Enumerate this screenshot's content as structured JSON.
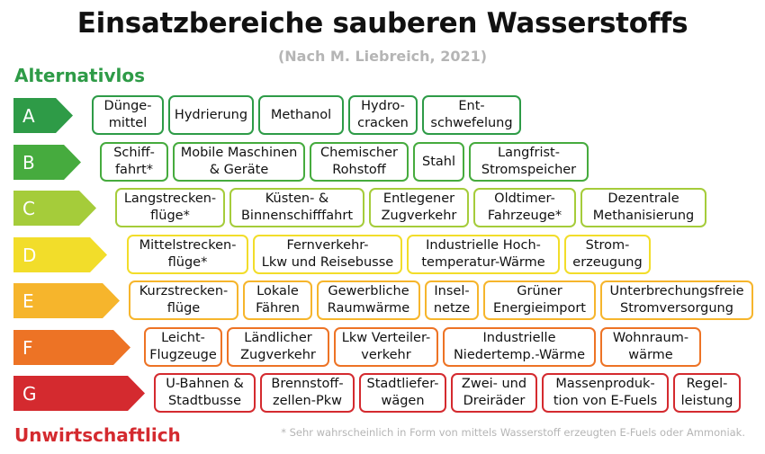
{
  "title": "Einsatzbereiche sauberen Wasserstoffs",
  "subtitle": "(Nach M. Liebreich, 2021)",
  "top_label": "Alternativlos",
  "bottom_label": "Unwirtschaftlich",
  "footnote": "* Sehr wahrscheinlich in Form von mittels Wasserstoff erzeugten E-Fuels oder Ammoniak.",
  "colors": {
    "top_label": "#2e9b47",
    "bottom_label": "#d42a2f"
  },
  "rows": [
    {
      "letter": "A",
      "color": "#2e9b47",
      "items": [
        "Dünge-\nmittel",
        "Hydrierung",
        "Methanol",
        "Hydro-\ncracken",
        "Ent-\nschwefelung"
      ]
    },
    {
      "letter": "B",
      "color": "#46ab3e",
      "items": [
        "Schiff-\nfahrt*",
        "Mobile Maschinen\n& Geräte",
        "Chemischer\nRohstoff",
        "Stahl",
        "Langfrist-\nStromspeicher"
      ]
    },
    {
      "letter": "C",
      "color": "#a5cc3a",
      "items": [
        "Langstrecken-\nflüge*",
        "Küsten- &\nBinnenschifffahrt",
        "Entlegener\nZugverkehr",
        "Oldtimer-\nFahrzeuge*",
        "Dezentrale\nMethanisierung"
      ]
    },
    {
      "letter": "D",
      "color": "#f2dd2a",
      "items": [
        "Mittelstrecken-\nflüge*",
        "Fernverkehr-\nLkw und Reisebusse",
        "Industrielle Hoch-\ntemperatur-Wärme",
        "Strom-\nerzeugung"
      ]
    },
    {
      "letter": "E",
      "color": "#f6b52c",
      "items": [
        "Kurzstrecken-\nflüge",
        "Lokale\nFähren",
        "Gewerbliche\nRaumwärme",
        "Insel-\nnetze",
        "Grüner\nEnergieimport",
        "Unterbrechungsfreie\nStromversorgung"
      ]
    },
    {
      "letter": "F",
      "color": "#ed7325",
      "items": [
        "Leicht-\nFlugzeuge",
        "Ländlicher\nZugverkehr",
        "Lkw Verteiler-\nverkehr",
        "Industrielle\nNiedertemp.-Wärme",
        "Wohnraum-\nwärme"
      ]
    },
    {
      "letter": "G",
      "color": "#d42a2f",
      "items": [
        "U-Bahnen &\nStadtbusse",
        "Brennstoff-\nzellen-Pkw",
        "Stadtliefer-\nwägen",
        "Zwei- und\nDreiräder",
        "Massenproduk-\ntion von E-Fuels",
        "Regel-\nleistung"
      ]
    }
  ]
}
